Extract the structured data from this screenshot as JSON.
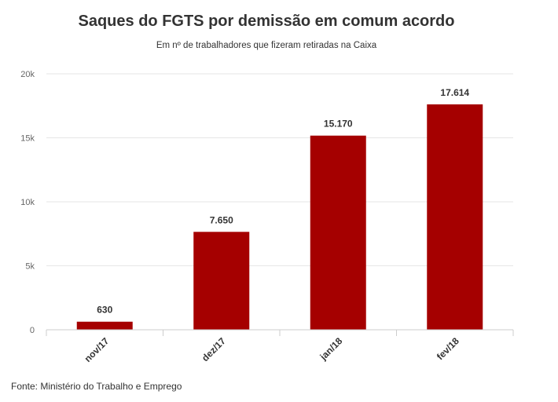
{
  "chart_data": {
    "type": "bar",
    "title": "Saques do FGTS por demissão em comum acordo",
    "subtitle": "Em nº de trabalhadores que fizeram retiradas na Caixa",
    "categories": [
      "nov/17",
      "dez/17",
      "jan/18",
      "fev/18"
    ],
    "values": [
      630,
      7650,
      15170,
      17614
    ],
    "value_labels": [
      "630",
      "7.650",
      "15.170",
      "17.614"
    ],
    "ylim": [
      0,
      20000
    ],
    "yticks": [
      0,
      5000,
      10000,
      15000,
      20000
    ],
    "ytick_labels": [
      "0",
      "5k",
      "10k",
      "15k",
      "20k"
    ],
    "xlabel": "",
    "ylabel": "",
    "grid": true,
    "legend": "none",
    "bar_color": "#a50000"
  },
  "source": "Fonte: Ministério do Trabalho e Emprego"
}
